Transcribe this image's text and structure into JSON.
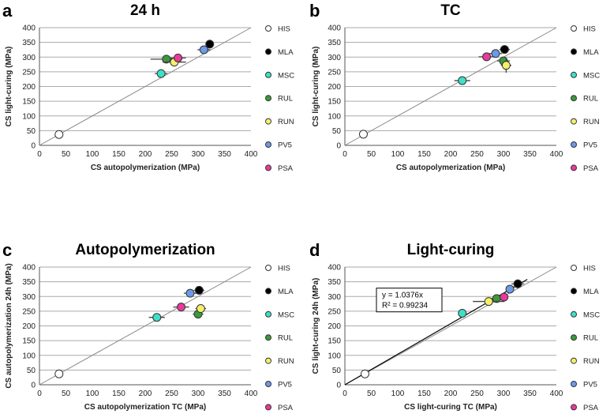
{
  "chart_data": [
    {
      "type": "scatter",
      "letter": "a",
      "title": "24 h",
      "xlabel": "CS autopolymerization (MPa)",
      "ylabel": "CS light-curing (MPa)",
      "xlim": [
        0,
        400
      ],
      "ylim": [
        0,
        400
      ],
      "ticks": [
        0,
        50,
        100,
        150,
        200,
        250,
        300,
        350,
        400
      ],
      "grid": "horizontal",
      "identity_line": true,
      "legend": "right",
      "points": [
        {
          "name": "HIS",
          "x": 37,
          "y": 37,
          "xerr": 5,
          "yerr": 3
        },
        {
          "name": "MLA",
          "x": 322,
          "y": 344,
          "xerr": 8,
          "yerr": 15
        },
        {
          "name": "MSC",
          "x": 230,
          "y": 244,
          "xerr": 12,
          "yerr": 6
        },
        {
          "name": "RUL",
          "x": 240,
          "y": 293,
          "xerr": 30,
          "yerr": 5
        },
        {
          "name": "RUN",
          "x": 255,
          "y": 283,
          "xerr": 22,
          "yerr": 12
        },
        {
          "name": "PV5",
          "x": 311,
          "y": 325,
          "xerr": 12,
          "yerr": 6
        },
        {
          "name": "PSA",
          "x": 262,
          "y": 297,
          "xerr": 15,
          "yerr": 6
        }
      ]
    },
    {
      "type": "scatter",
      "letter": "b",
      "title": "TC",
      "xlabel": "CS autopolymerization (MPa)",
      "ylabel": "CS light-curing (MPa)",
      "xlim": [
        0,
        400
      ],
      "ylim": [
        0,
        400
      ],
      "ticks": [
        0,
        50,
        100,
        150,
        200,
        250,
        300,
        350,
        400
      ],
      "grid": "horizontal",
      "identity_line": true,
      "legend": "right",
      "points": [
        {
          "name": "HIS",
          "x": 35,
          "y": 38,
          "xerr": 4,
          "yerr": 3
        },
        {
          "name": "MLA",
          "x": 302,
          "y": 326,
          "xerr": 10,
          "yerr": 12
        },
        {
          "name": "MSC",
          "x": 222,
          "y": 220,
          "xerr": 15,
          "yerr": 5
        },
        {
          "name": "RUL",
          "x": 300,
          "y": 287,
          "xerr": 12,
          "yerr": 12
        },
        {
          "name": "RUN",
          "x": 305,
          "y": 272,
          "xerr": 10,
          "yerr": 25
        },
        {
          "name": "PV5",
          "x": 285,
          "y": 312,
          "xerr": 12,
          "yerr": 5
        },
        {
          "name": "PSA",
          "x": 268,
          "y": 301,
          "xerr": 15,
          "yerr": 5
        }
      ]
    },
    {
      "type": "scatter",
      "letter": "c",
      "title": "Autopolymerization",
      "xlabel": "CS autopolymerization TC (MPa)",
      "ylabel": "CS autopolymerization 24h (MPa)",
      "xlim": [
        0,
        400
      ],
      "ylim": [
        0,
        400
      ],
      "ticks": [
        0,
        50,
        100,
        150,
        200,
        250,
        300,
        350,
        400
      ],
      "grid": "horizontal",
      "identity_line": true,
      "legend": "right",
      "points": [
        {
          "name": "HIS",
          "x": 37,
          "y": 37,
          "xerr": 4,
          "yerr": 3
        },
        {
          "name": "MLA",
          "x": 302,
          "y": 321,
          "xerr": 10,
          "yerr": 5
        },
        {
          "name": "MSC",
          "x": 222,
          "y": 229,
          "xerr": 15,
          "yerr": 12
        },
        {
          "name": "RUL",
          "x": 300,
          "y": 240,
          "xerr": 10,
          "yerr": 12
        },
        {
          "name": "RUN",
          "x": 305,
          "y": 259,
          "xerr": 10,
          "yerr": 12
        },
        {
          "name": "PV5",
          "x": 285,
          "y": 311,
          "xerr": 12,
          "yerr": 6
        },
        {
          "name": "PSA",
          "x": 268,
          "y": 264,
          "xerr": 15,
          "yerr": 15
        }
      ]
    },
    {
      "type": "scatter",
      "letter": "d",
      "title": "Light-curing",
      "xlabel": "CS light-curing TC (MPa)",
      "ylabel": "CS light-curing 24h (MPa)",
      "xlim": [
        0,
        400
      ],
      "ylim": [
        0,
        400
      ],
      "ticks": [
        0,
        50,
        100,
        150,
        200,
        250,
        300,
        350,
        400
      ],
      "grid": "horizontal",
      "identity_line": true,
      "legend": "right",
      "trendline": {
        "slope": 1.0376,
        "equation": "y = 1.0376x",
        "r2": "R² = 0.99234"
      },
      "points": [
        {
          "name": "HIS",
          "x": 38,
          "y": 37,
          "xerr": 4,
          "yerr": 3
        },
        {
          "name": "MLA",
          "x": 327,
          "y": 343,
          "xerr": 12,
          "yerr": 15
        },
        {
          "name": "MSC",
          "x": 222,
          "y": 243,
          "xerr": 5,
          "yerr": 5
        },
        {
          "name": "RUL",
          "x": 287,
          "y": 293,
          "xerr": 12,
          "yerr": 5
        },
        {
          "name": "RUN",
          "x": 272,
          "y": 283,
          "xerr": 30,
          "yerr": 12
        },
        {
          "name": "PV5",
          "x": 312,
          "y": 325,
          "xerr": 6,
          "yerr": 6
        },
        {
          "name": "PSA",
          "x": 301,
          "y": 298,
          "xerr": 8,
          "yerr": 5
        }
      ]
    }
  ],
  "colors": {
    "HIS": "#ffffff",
    "MLA": "#000000",
    "MSC": "#3ee0c8",
    "RUL": "#3a9a3a",
    "RUN": "#f4f06a",
    "PV5": "#6b9be8",
    "PSA": "#e83a9a"
  }
}
